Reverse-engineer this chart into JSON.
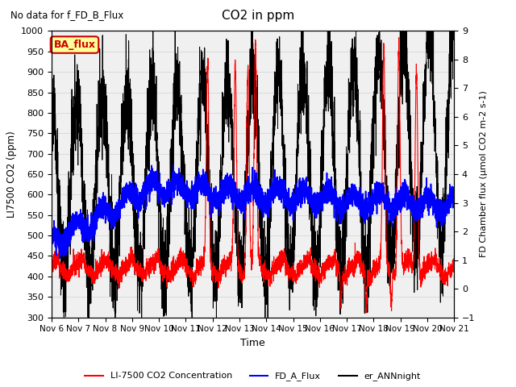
{
  "title": "CO2 in ppm",
  "subtitle": "No data for f_FD_B_Flux",
  "xlabel": "Time",
  "ylabel_left": "LI7500 CO2 (ppm)",
  "ylabel_right": "FD Chamber flux (μmol CO2 m-2 s-1)",
  "ylim_left": [
    300,
    1000
  ],
  "ylim_right": [
    -1.0,
    9.0
  ],
  "yticks_left": [
    300,
    350,
    400,
    450,
    500,
    550,
    600,
    650,
    700,
    750,
    800,
    850,
    900,
    950,
    1000
  ],
  "yticks_right": [
    -1.0,
    0.0,
    1.0,
    2.0,
    3.0,
    4.0,
    5.0,
    6.0,
    7.0,
    8.0,
    9.0
  ],
  "xtick_labels": [
    "Nov 6",
    "Nov 7",
    "Nov 8",
    "Nov 9",
    "Nov 10",
    "Nov 11",
    "Nov 12",
    "Nov 13",
    "Nov 14",
    "Nov 15",
    "Nov 16",
    "Nov 17",
    "Nov 18",
    "Nov 19",
    "Nov 20",
    "Nov 21"
  ],
  "color_red": "#ff0000",
  "color_blue": "#0000ff",
  "color_black": "#000000",
  "ba_flux_color_bg": "#ffff99",
  "ba_flux_color_text": "#cc0000",
  "ba_flux_color_border": "#cc0000",
  "legend_entries": [
    "LI-7500 CO2 Concentration",
    "FD_A_Flux",
    "er_ANNnight"
  ],
  "n_points": 3840,
  "seed": 42
}
